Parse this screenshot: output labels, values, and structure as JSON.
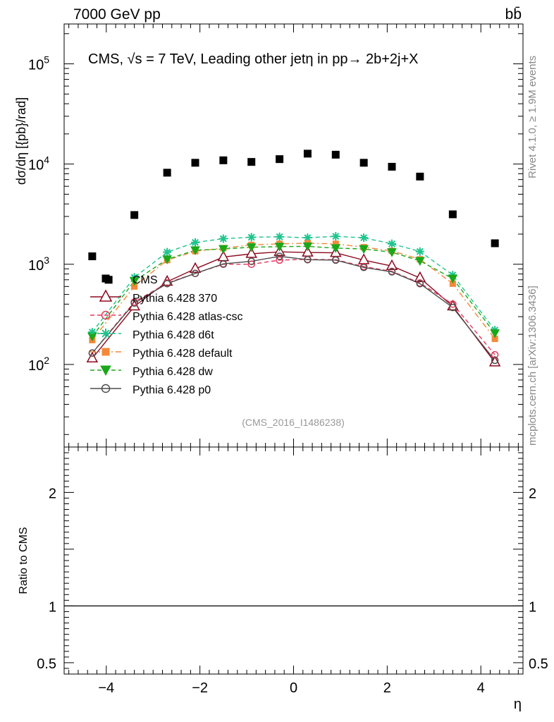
{
  "header": {
    "energy_label": "7000 GeV pp",
    "process_label": "bb̄"
  },
  "side": {
    "rivet_label": "Rivet 4.1.0, ≥ 1.9M events",
    "mcplots_label": "mcplots.cern.ch [arXiv:1306.3436]"
  },
  "chart_data": {
    "type": "scatter",
    "title": "CMS, √s = 7 TeV, Leading other jetη in pp→  2b+2j+X",
    "analysis_id": "(CMS_2016_I1486238)",
    "xlabel": "η",
    "ylabel": "dσ/dη [{pb}/rad]",
    "ratio_ylabel": "Ratio to CMS",
    "xlim": [
      -4.9,
      4.9
    ],
    "ylim_log": [
      15,
      250000
    ],
    "ratio_ylim": [
      0.4,
      2.4
    ],
    "x_ticks": [
      {
        "v": -4,
        "label": "−4"
      },
      {
        "v": -2,
        "label": "−2"
      },
      {
        "v": 0,
        "label": "0"
      },
      {
        "v": 2,
        "label": "2"
      },
      {
        "v": 4,
        "label": "4"
      }
    ],
    "y_ticks": [
      {
        "v": 100,
        "base": "10",
        "exp": "2"
      },
      {
        "v": 1000,
        "base": "10",
        "exp": "3"
      },
      {
        "v": 10000,
        "base": "10",
        "exp": "4"
      },
      {
        "v": 100000,
        "base": "10",
        "exp": "5"
      }
    ],
    "ratio_ticks": [
      {
        "v": 0.5,
        "label": "0.5"
      },
      {
        "v": 1,
        "label": "1"
      },
      {
        "v": 2,
        "label": "2"
      }
    ],
    "x": [
      -4.3,
      -3.4,
      -2.7,
      -2.1,
      -1.5,
      -0.9,
      -0.3,
      0.3,
      0.9,
      1.5,
      2.1,
      2.7,
      3.4,
      4.3
    ],
    "data": {
      "name": "CMS",
      "color": "#000000",
      "x": [
        -4.3,
        -3.95,
        -3.4,
        -2.7,
        -2.1,
        -1.5,
        -0.9,
        -0.3,
        0.3,
        0.9,
        1.5,
        2.1,
        2.7,
        3.4,
        4.3
      ],
      "values": [
        1200,
        700,
        3100,
        8200,
        10300,
        10900,
        10500,
        11200,
        12700,
        12400,
        10300,
        9400,
        7500,
        3150,
        1620
      ]
    },
    "series": [
      {
        "name": "Pythia 6.428 370",
        "color": "#8b0a1e",
        "marker": "triangle-open",
        "dash": "solid",
        "values": [
          115,
          380,
          670,
          900,
          1180,
          1270,
          1330,
          1310,
          1300,
          1100,
          960,
          730,
          380,
          105
        ]
      },
      {
        "name": "Pythia 6.428 atlas-csc",
        "color": "#e8365c",
        "marker": "circle-open",
        "dash": "dashed",
        "values": [
          130,
          420,
          650,
          810,
          1000,
          1000,
          1100,
          1120,
          1110,
          950,
          850,
          650,
          400,
          125
        ]
      },
      {
        "name": "Pythia 6.428 d6t",
        "color": "#1fc48e",
        "marker": "star",
        "dash": "dashed",
        "values": [
          210,
          740,
          1320,
          1650,
          1800,
          1860,
          1880,
          1840,
          1900,
          1840,
          1600,
          1340,
          780,
          220
        ]
      },
      {
        "name": "Pythia 6.428 default",
        "color": "#f5883a",
        "marker": "square",
        "dash": "dashdot",
        "values": [
          175,
          600,
          1100,
          1350,
          1450,
          1560,
          1600,
          1620,
          1600,
          1480,
          1360,
          1120,
          640,
          180
        ]
      },
      {
        "name": "Pythia 6.428 dw",
        "color": "#1aa81a",
        "marker": "triangle-down",
        "dash": "dashed",
        "values": [
          190,
          680,
          1120,
          1380,
          1420,
          1480,
          1500,
          1510,
          1450,
          1420,
          1320,
          1080,
          720,
          205
        ]
      },
      {
        "name": "Pythia 6.428 p0",
        "color": "#4d4d4d",
        "marker": "circle-open",
        "dash": "solid",
        "values": [
          130,
          410,
          640,
          810,
          1010,
          1070,
          1200,
          1110,
          1100,
          930,
          840,
          640,
          370,
          110
        ]
      }
    ]
  }
}
